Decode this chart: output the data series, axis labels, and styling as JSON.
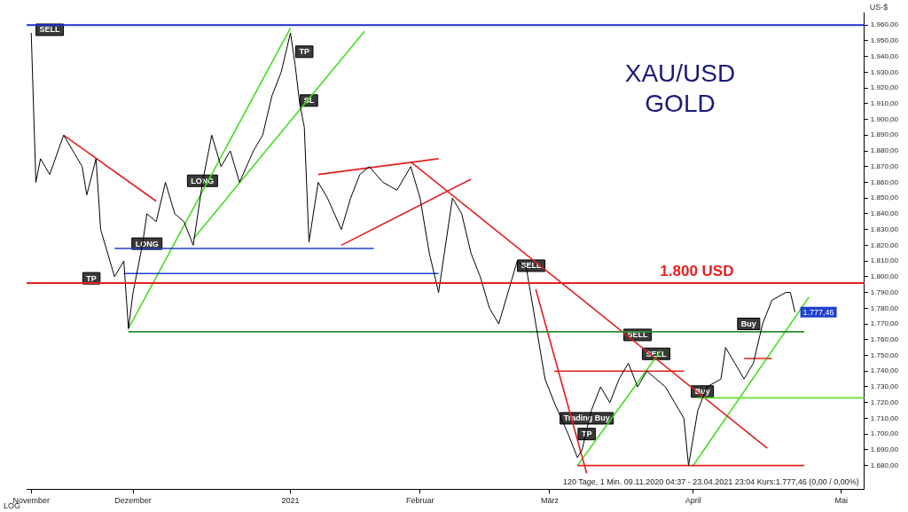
{
  "chart_data": {
    "type": "line",
    "title": "XAU/USD",
    "subtitle": "GOLD",
    "ylabel": "US-$",
    "xlim": [
      "2020-11-08",
      "2021-05-08"
    ],
    "xticks": [
      {
        "value": "2020-11-09",
        "label": "November"
      },
      {
        "value": "2020-12-01",
        "label": "Dezember"
      },
      {
        "value": "2021-01-04",
        "label": "2021"
      },
      {
        "value": "2021-02-01",
        "label": "Februar"
      },
      {
        "value": "2021-03-01",
        "label": "März"
      },
      {
        "value": "2021-04-01",
        "label": "April"
      },
      {
        "value": "2021-05-03",
        "label": "Mai"
      }
    ],
    "ylim": [
      1665,
      1968
    ],
    "yticks": [
      {
        "value": 1680,
        "label": "1.680,00"
      },
      {
        "value": 1690,
        "label": "1.690,00"
      },
      {
        "value": 1700,
        "label": "1.700,00"
      },
      {
        "value": 1710,
        "label": "1.710,00"
      },
      {
        "value": 1720,
        "label": "1.720,00"
      },
      {
        "value": 1730,
        "label": "1.730,00"
      },
      {
        "value": 1740,
        "label": "1.740,00"
      },
      {
        "value": 1750,
        "label": "1.750,00"
      },
      {
        "value": 1760,
        "label": "1.760,00"
      },
      {
        "value": 1770,
        "label": "1.770,00"
      },
      {
        "value": 1780,
        "label": "1.780,00"
      },
      {
        "value": 1790,
        "label": "1.790,00"
      },
      {
        "value": 1800,
        "label": "1.800,00"
      },
      {
        "value": 1810,
        "label": "1.810,00"
      },
      {
        "value": 1820,
        "label": "1.820,00"
      },
      {
        "value": 1830,
        "label": "1.830,00"
      },
      {
        "value": 1840,
        "label": "1.840,00"
      },
      {
        "value": 1850,
        "label": "1.850,00"
      },
      {
        "value": 1860,
        "label": "1.860,00"
      },
      {
        "value": 1870,
        "label": "1.870,00"
      },
      {
        "value": 1880,
        "label": "1.880,00"
      },
      {
        "value": 1890,
        "label": "1.890,00"
      },
      {
        "value": 1900,
        "label": "1.900,00"
      },
      {
        "value": 1910,
        "label": "1.910,00"
      },
      {
        "value": 1920,
        "label": "1.920,00"
      },
      {
        "value": 1930,
        "label": "1.930,00"
      },
      {
        "value": 1940,
        "label": "1.940,00"
      },
      {
        "value": 1950,
        "label": "1.950,00"
      },
      {
        "value": 1960,
        "label": "1.960,00"
      }
    ],
    "grid": false,
    "legend": false,
    "series": [
      {
        "color": "#000000",
        "x": [
          "2020-11-09",
          "2020-11-10",
          "2020-11-11",
          "2020-11-13",
          "2020-11-16",
          "2020-11-18",
          "2020-11-20",
          "2020-11-21",
          "2020-11-23",
          "2020-11-24",
          "2020-11-26",
          "2020-11-27",
          "2020-11-29",
          "2020-11-30",
          "2020-12-01",
          "2020-12-03",
          "2020-12-04",
          "2020-12-06",
          "2020-12-08",
          "2020-12-10",
          "2020-12-12",
          "2020-12-14",
          "2020-12-16",
          "2020-12-18",
          "2020-12-20",
          "2020-12-22",
          "2020-12-24",
          "2020-12-27",
          "2020-12-29",
          "2020-12-31",
          "2021-01-02",
          "2021-01-04",
          "2021-01-05",
          "2021-01-06",
          "2021-01-07",
          "2021-01-08",
          "2021-01-10",
          "2021-01-12",
          "2021-01-15",
          "2021-01-17",
          "2021-01-19",
          "2021-01-21",
          "2021-01-24",
          "2021-01-27",
          "2021-01-30",
          "2021-02-01",
          "2021-02-03",
          "2021-02-05",
          "2021-02-07",
          "2021-02-08",
          "2021-02-10",
          "2021-02-12",
          "2021-02-14",
          "2021-02-16",
          "2021-02-18",
          "2021-02-20",
          "2021-02-22",
          "2021-02-24",
          "2021-02-26",
          "2021-02-28",
          "2021-03-02",
          "2021-03-05",
          "2021-03-07",
          "2021-03-08",
          "2021-03-10",
          "2021-03-12",
          "2021-03-14",
          "2021-03-16",
          "2021-03-18",
          "2021-03-20",
          "2021-03-22",
          "2021-03-24",
          "2021-03-26",
          "2021-03-28",
          "2021-03-30",
          "2021-03-31",
          "2021-04-02",
          "2021-04-04",
          "2021-04-07",
          "2021-04-08",
          "2021-04-10",
          "2021-04-12",
          "2021-04-14",
          "2021-04-16",
          "2021-04-18",
          "2021-04-21",
          "2021-04-22",
          "2021-04-23"
        ],
        "values": [
          1955,
          1860,
          1875,
          1865,
          1890,
          1880,
          1870,
          1852,
          1875,
          1830,
          1810,
          1800,
          1810,
          1767,
          1790,
          1820,
          1840,
          1835,
          1860,
          1840,
          1835,
          1820,
          1860,
          1890,
          1870,
          1880,
          1860,
          1880,
          1890,
          1915,
          1930,
          1955,
          1935,
          1910,
          1895,
          1822,
          1860,
          1850,
          1830,
          1850,
          1865,
          1870,
          1860,
          1855,
          1870,
          1850,
          1815,
          1790,
          1830,
          1850,
          1840,
          1815,
          1800,
          1780,
          1770,
          1790,
          1810,
          1805,
          1770,
          1735,
          1720,
          1700,
          1685,
          1690,
          1715,
          1730,
          1720,
          1735,
          1745,
          1730,
          1740,
          1735,
          1730,
          1720,
          1710,
          1680,
          1715,
          1730,
          1735,
          1755,
          1745,
          1735,
          1745,
          1770,
          1785,
          1790,
          1790,
          1777.46
        ],
        "value_labels": [
          null,
          null,
          null,
          null,
          null,
          null,
          null,
          null,
          null,
          null,
          null,
          null,
          null,
          null,
          null,
          null,
          null,
          null,
          null,
          null,
          null,
          null,
          null,
          null,
          null,
          null,
          null,
          null,
          null,
          null,
          null,
          null,
          null,
          null,
          null,
          null,
          null,
          null,
          null,
          null,
          null,
          null,
          null,
          null,
          null,
          null,
          null,
          null,
          null,
          null,
          null,
          null,
          null,
          null,
          null,
          null,
          null,
          null,
          null,
          null,
          null,
          null,
          null,
          null,
          null,
          null,
          null,
          null,
          null,
          null,
          null,
          null,
          null,
          null,
          null,
          null,
          null,
          null,
          null,
          null,
          null,
          null,
          null,
          null,
          null,
          null,
          null,
          "1.777,46"
        ]
      },
      {
        "type": "line",
        "color": "#2e8b2e",
        "x": [
          "2020-11-30",
          "2021-04-25"
        ],
        "values": [
          1765,
          1765
        ]
      },
      {
        "type": "line",
        "color": "#1f3fcf",
        "x": [
          "2020-11-27",
          "2021-01-22"
        ],
        "values": [
          1818,
          1818
        ]
      },
      {
        "type": "line",
        "color": "#1f3fcf",
        "x": [
          "2020-11-29",
          "2021-02-05"
        ],
        "values": [
          1802,
          1802
        ]
      },
      {
        "type": "line",
        "color": "#e02020",
        "x": [
          "2021-03-02",
          "2021-03-30"
        ],
        "values": [
          1740,
          1740
        ]
      },
      {
        "type": "line",
        "color": "#e02020",
        "x": [
          "2021-03-07",
          "2021-04-25"
        ],
        "values": [
          1680,
          1680
        ]
      },
      {
        "type": "line",
        "color": "#66dd33",
        "x": [
          "2021-04-02",
          "2021-05-08"
        ],
        "values": [
          1723,
          1723
        ]
      },
      {
        "type": "line",
        "color": "#e02020",
        "x": [
          "2021-04-12",
          "2021-04-18"
        ],
        "values": [
          1748,
          1748
        ]
      },
      {
        "type": "line",
        "color": "#44dd22",
        "x": [
          "2020-11-30",
          "2021-01-04"
        ],
        "values": [
          1767,
          1958
        ]
      },
      {
        "type": "line",
        "color": "#44dd22",
        "x": [
          "2020-12-14",
          "2021-01-20"
        ],
        "values": [
          1824,
          1956
        ]
      },
      {
        "type": "line",
        "color": "#e02020",
        "x": [
          "2020-11-16",
          "2020-12-06"
        ],
        "values": [
          1890,
          1848
        ]
      },
      {
        "type": "line",
        "color": "#e02020",
        "x": [
          "2021-01-10",
          "2021-02-05"
        ],
        "values": [
          1865,
          1875
        ]
      },
      {
        "type": "line",
        "color": "#e02020",
        "x": [
          "2021-01-15",
          "2021-02-12"
        ],
        "values": [
          1820,
          1862
        ]
      },
      {
        "type": "line",
        "color": "#e02020",
        "x": [
          "2021-01-30",
          "2021-04-17"
        ],
        "values": [
          1873,
          1691
        ]
      },
      {
        "type": "line",
        "color": "#e02020",
        "x": [
          "2021-02-26",
          "2021-03-09"
        ],
        "values": [
          1792,
          1675
        ]
      },
      {
        "type": "line",
        "color": "#44dd22",
        "x": [
          "2021-03-07",
          "2021-03-25"
        ],
        "values": [
          1680,
          1753
        ]
      },
      {
        "type": "line",
        "color": "#44dd22",
        "x": [
          "2021-04-01",
          "2021-04-26"
        ],
        "values": [
          1680,
          1787
        ]
      }
    ],
    "ref_lines": [
      {
        "axis": "y",
        "value": 1960,
        "label": null,
        "color": "#1f2fcf"
      },
      {
        "axis": "y",
        "value": 1796,
        "label": "1.800 USD",
        "color": "#e82020"
      }
    ],
    "annotations": [
      {
        "text": "SELL",
        "x": "2020-11-13",
        "y": 1957
      },
      {
        "text": "TP",
        "x": "2021-01-07",
        "y": 1943
      },
      {
        "text": "SL",
        "x": "2021-01-08",
        "y": 1912
      },
      {
        "text": "LONG",
        "x": "2020-12-16",
        "y": 1861
      },
      {
        "text": "LONG",
        "x": "2020-12-04",
        "y": 1821
      },
      {
        "text": "TP",
        "x": "2020-11-22",
        "y": 1799
      },
      {
        "text": "SELL",
        "x": "2021-02-25",
        "y": 1807
      },
      {
        "text": "SELL",
        "x": "2021-03-20",
        "y": 1763
      },
      {
        "text": "SELL",
        "x": "2021-03-24",
        "y": 1751
      },
      {
        "text": "Buy",
        "x": "2021-04-13",
        "y": 1770
      },
      {
        "text": "Buy",
        "x": "2021-04-03",
        "y": 1727
      },
      {
        "text": "Trading Buy",
        "x": "2021-03-09",
        "y": 1710
      },
      {
        "text": "TP",
        "x": "2021-03-09",
        "y": 1700
      },
      "120 Tage, 1 Min. 09.11.2020 04:37 - 23.04.2021 23:04 Kurs:1.777,46 (0,00 / 0,00%)",
      "LOG"
    ]
  }
}
